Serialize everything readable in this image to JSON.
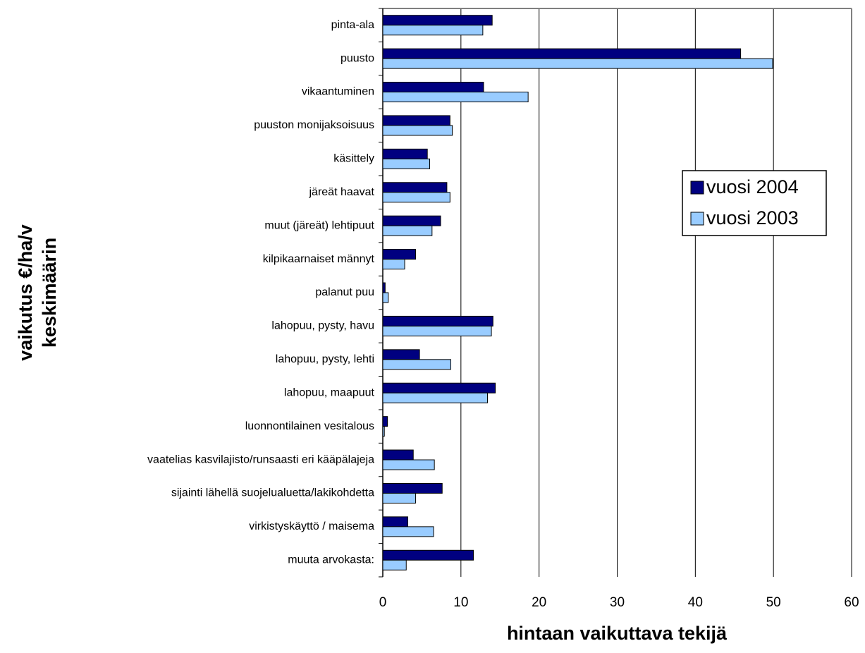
{
  "chart_data": {
    "type": "hbar",
    "xlabel": "hintaan vaikuttava tekijä",
    "ylabel": [
      "vaikutus €/ha/v",
      "keskimäärin"
    ],
    "categories": [
      "pinta-ala",
      "puusto",
      "vikaantuminen",
      "puuston monijaksoisuus",
      "käsittely",
      "järeät haavat",
      "muut (järeät) lehtipuut",
      "kilpikaarnaiset männyt",
      "palanut puu",
      "lahopuu, pysty, havu",
      "lahopuu, pysty, lehti",
      "lahopuu, maapuut",
      "luonnontilainen vesitalous",
      "vaatelias kasvilajisto/runsaasti eri kääpälajeja",
      "sijainti lähellä suojelualuetta/lakikohdetta",
      "virkistyskäyttö / maisema",
      "muuta arvokasta:"
    ],
    "series": [
      {
        "name": "vuosi 2004",
        "color": "#000080",
        "values": [
          14.0,
          45.8,
          12.9,
          8.6,
          5.7,
          8.2,
          7.4,
          4.2,
          0.3,
          14.1,
          4.7,
          14.4,
          0.6,
          3.9,
          7.6,
          3.2,
          11.6
        ]
      },
      {
        "name": "vuosi 2003",
        "color": "#99ccff",
        "values": [
          12.8,
          49.9,
          18.6,
          8.9,
          6.0,
          8.6,
          6.3,
          2.8,
          0.7,
          13.9,
          8.7,
          13.4,
          0.2,
          6.6,
          4.2,
          6.5,
          3.0
        ]
      }
    ],
    "xlim": [
      0,
      60
    ],
    "xticks": [
      0,
      10,
      20,
      30,
      40,
      50,
      60
    ],
    "grid": true,
    "legend": "right"
  }
}
